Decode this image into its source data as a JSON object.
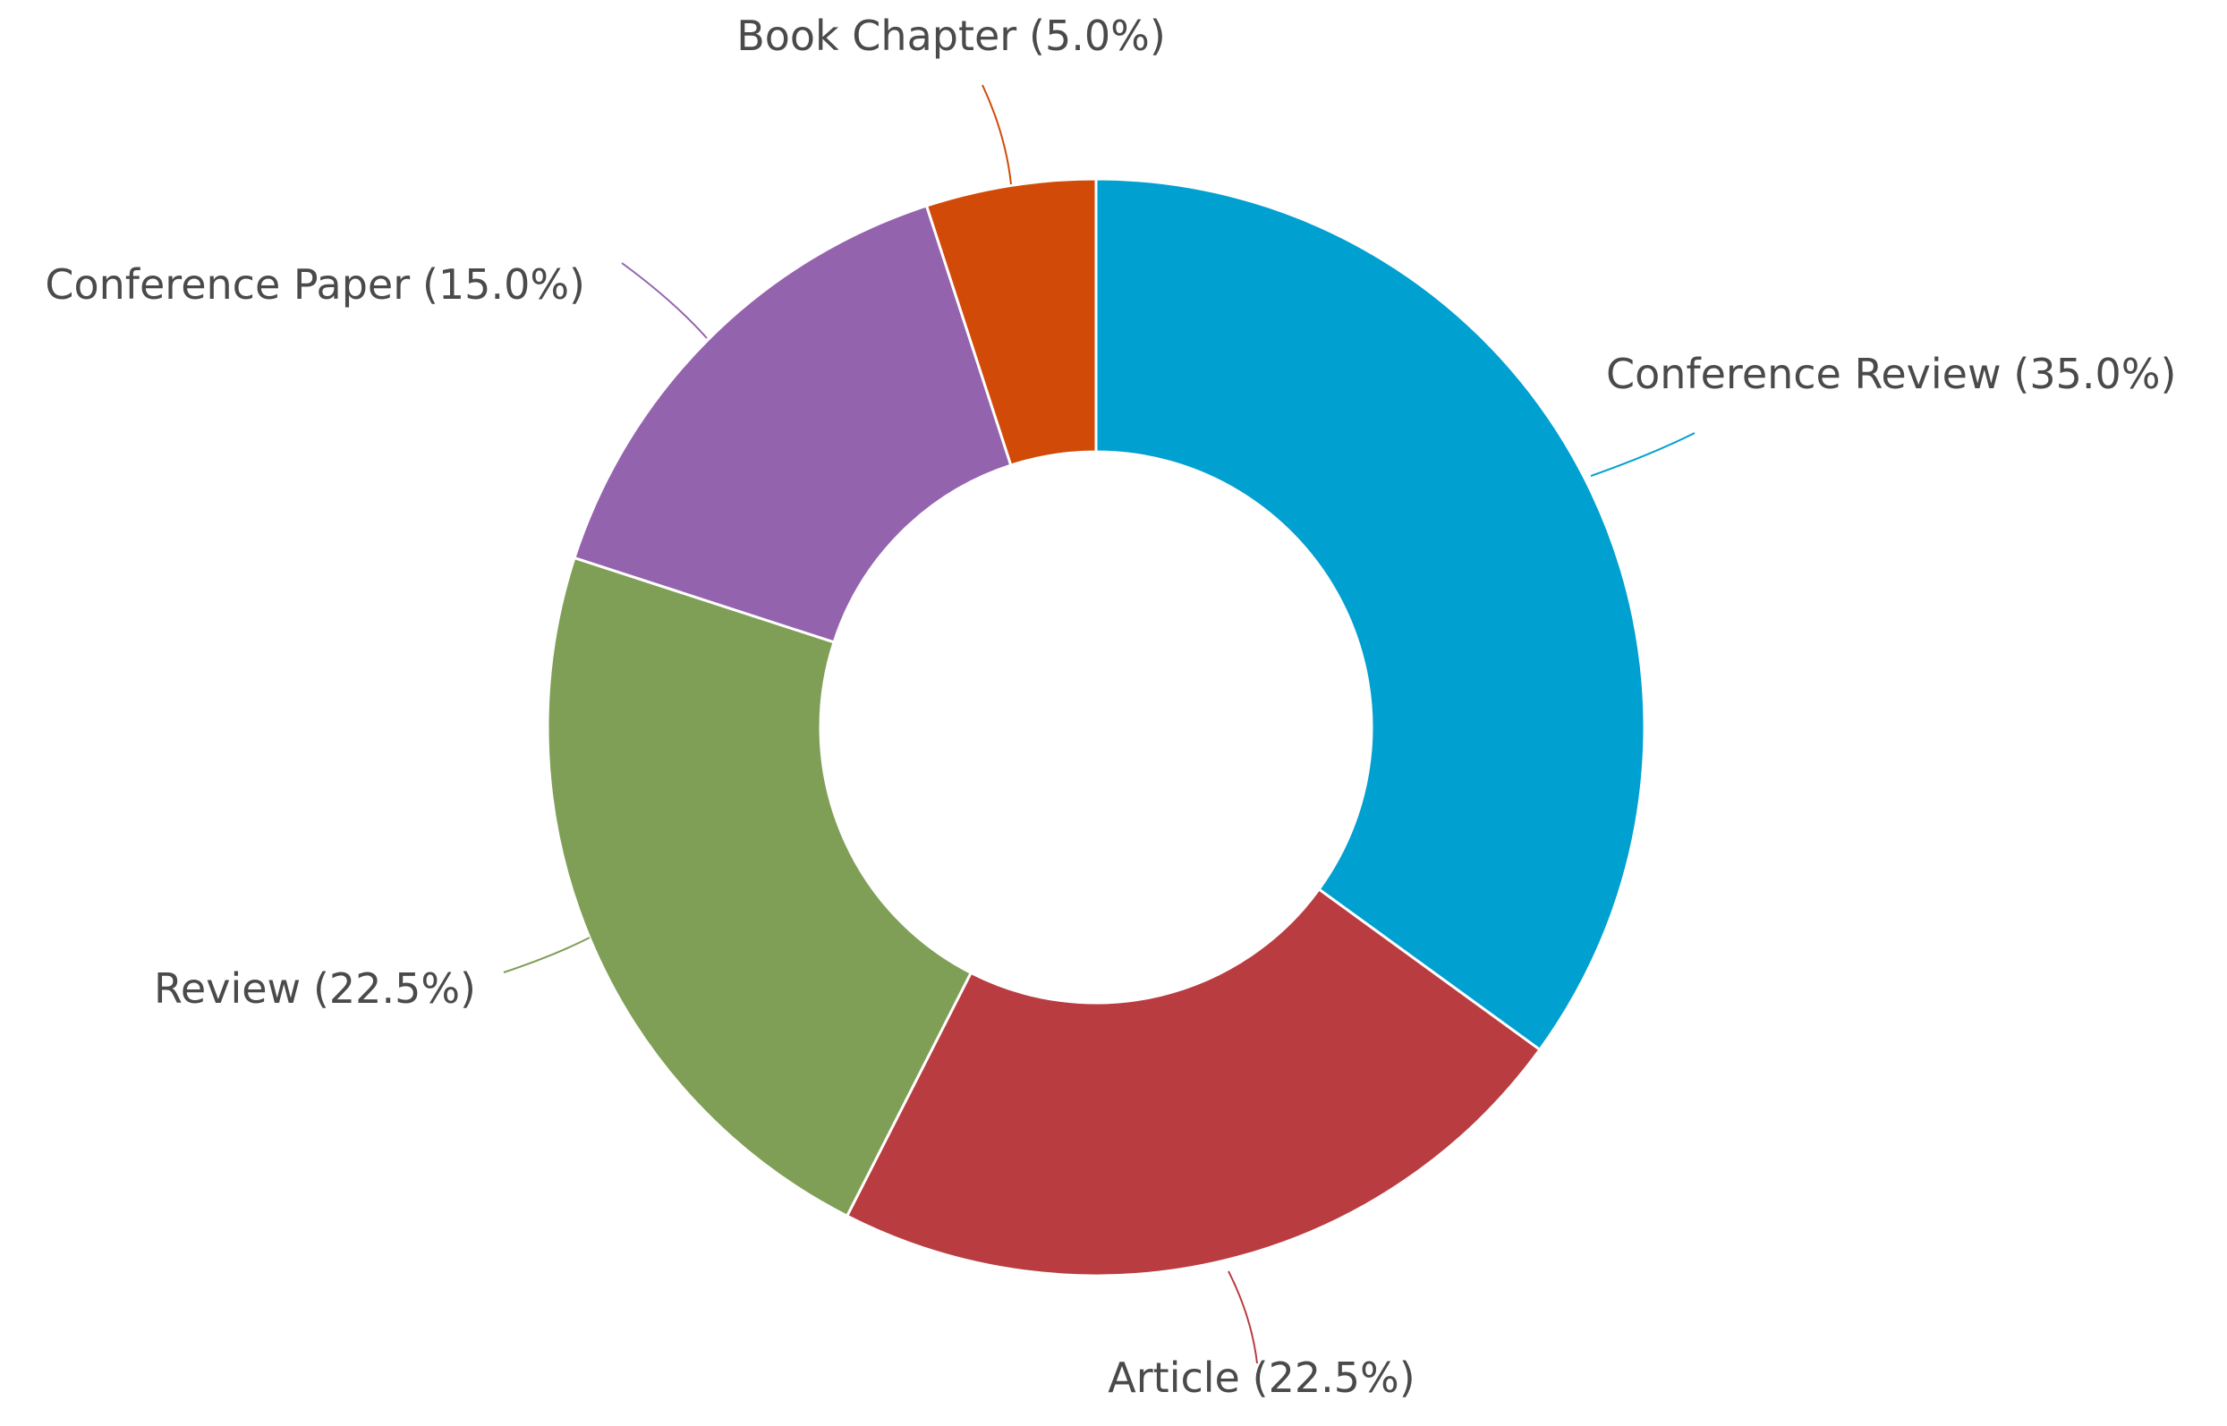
{
  "chart_data": {
    "type": "donut",
    "categories": [
      "Conference Review",
      "Article",
      "Review",
      "Conference Paper",
      "Book Chapter"
    ],
    "values": [
      35,
      22.5,
      22.5,
      15,
      5
    ],
    "value_labels": [
      "(35.0%)",
      "(22.5%)",
      "(22.5%)",
      "(15.0%)",
      "(5.0%)"
    ],
    "colors": [
      "#00a0d1",
      "#b93c41",
      "#7f9f56",
      "#9463ae",
      "#d24a07"
    ]
  }
}
